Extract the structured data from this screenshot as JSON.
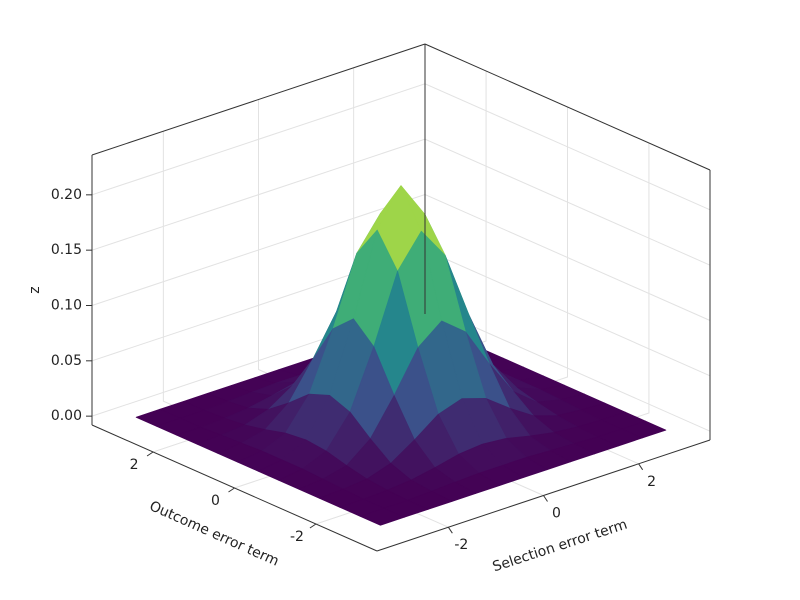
{
  "chart_data": {
    "type": "surface",
    "x_label": "Selection error term",
    "y_label": "Outcome error term",
    "z_label": "z",
    "x": [
      -3,
      -2.5,
      -2,
      -1.5,
      -1,
      -0.5,
      0,
      0.5,
      1,
      1.5,
      2,
      2.5,
      3
    ],
    "y": [
      -3,
      -2.5,
      -2,
      -1.5,
      -1,
      -0.5,
      0,
      0.5,
      1,
      1.5,
      2,
      2.5,
      3
    ],
    "z": [
      [
        0,
        0,
        0,
        0,
        0,
        0,
        0,
        0,
        0,
        0,
        0,
        0,
        0
      ],
      [
        0,
        0,
        0,
        0.001,
        0.002,
        0.003,
        0.003,
        0.003,
        0.002,
        0.001,
        0,
        0,
        0
      ],
      [
        0,
        0,
        0.001,
        0.003,
        0.007,
        0.012,
        0.014,
        0.012,
        0.007,
        0.003,
        0.001,
        0,
        0
      ],
      [
        0,
        0.001,
        0.003,
        0.01,
        0.024,
        0.04,
        0.047,
        0.04,
        0.024,
        0.01,
        0.003,
        0.001,
        0
      ],
      [
        0,
        0.002,
        0.007,
        0.024,
        0.056,
        0.092,
        0.109,
        0.092,
        0.056,
        0.024,
        0.007,
        0.002,
        0
      ],
      [
        0,
        0.003,
        0.012,
        0.04,
        0.092,
        0.153,
        0.182,
        0.153,
        0.092,
        0.04,
        0.012,
        0.003,
        0
      ],
      [
        0,
        0.003,
        0.014,
        0.047,
        0.109,
        0.182,
        0.215,
        0.182,
        0.109,
        0.047,
        0.014,
        0.003,
        0
      ],
      [
        0,
        0.003,
        0.012,
        0.04,
        0.092,
        0.153,
        0.182,
        0.153,
        0.092,
        0.04,
        0.012,
        0.003,
        0
      ],
      [
        0,
        0.002,
        0.007,
        0.024,
        0.056,
        0.092,
        0.109,
        0.092,
        0.056,
        0.024,
        0.007,
        0.002,
        0
      ],
      [
        0,
        0.001,
        0.003,
        0.01,
        0.024,
        0.04,
        0.047,
        0.04,
        0.024,
        0.01,
        0.003,
        0.001,
        0
      ],
      [
        0,
        0,
        0.001,
        0.003,
        0.007,
        0.012,
        0.014,
        0.012,
        0.007,
        0.003,
        0.001,
        0,
        0
      ],
      [
        0,
        0,
        0,
        0.001,
        0.002,
        0.003,
        0.003,
        0.003,
        0.002,
        0.001,
        0,
        0,
        0
      ],
      [
        0,
        0,
        0,
        0,
        0,
        0,
        0,
        0,
        0,
        0,
        0,
        0,
        0
      ]
    ],
    "xlim": [
      -3.5,
      3.5
    ],
    "ylim": [
      -3.5,
      3.5
    ],
    "zlim": [
      -0.008,
      0.236
    ],
    "xticks": [
      -2,
      0,
      2
    ],
    "yticks": [
      -2,
      0,
      2
    ],
    "zticks": [
      {
        "value": 0,
        "label": "0.00"
      },
      {
        "value": 0.05,
        "label": "0.05"
      },
      {
        "value": 0.1,
        "label": "0.10"
      },
      {
        "value": 0.15,
        "label": "0.15"
      },
      {
        "value": 0.2,
        "label": "0.20"
      }
    ],
    "grid": true,
    "colormap": [
      "#440154",
      "#3b528b",
      "#21918c",
      "#5ec962",
      "#fde725"
    ]
  }
}
